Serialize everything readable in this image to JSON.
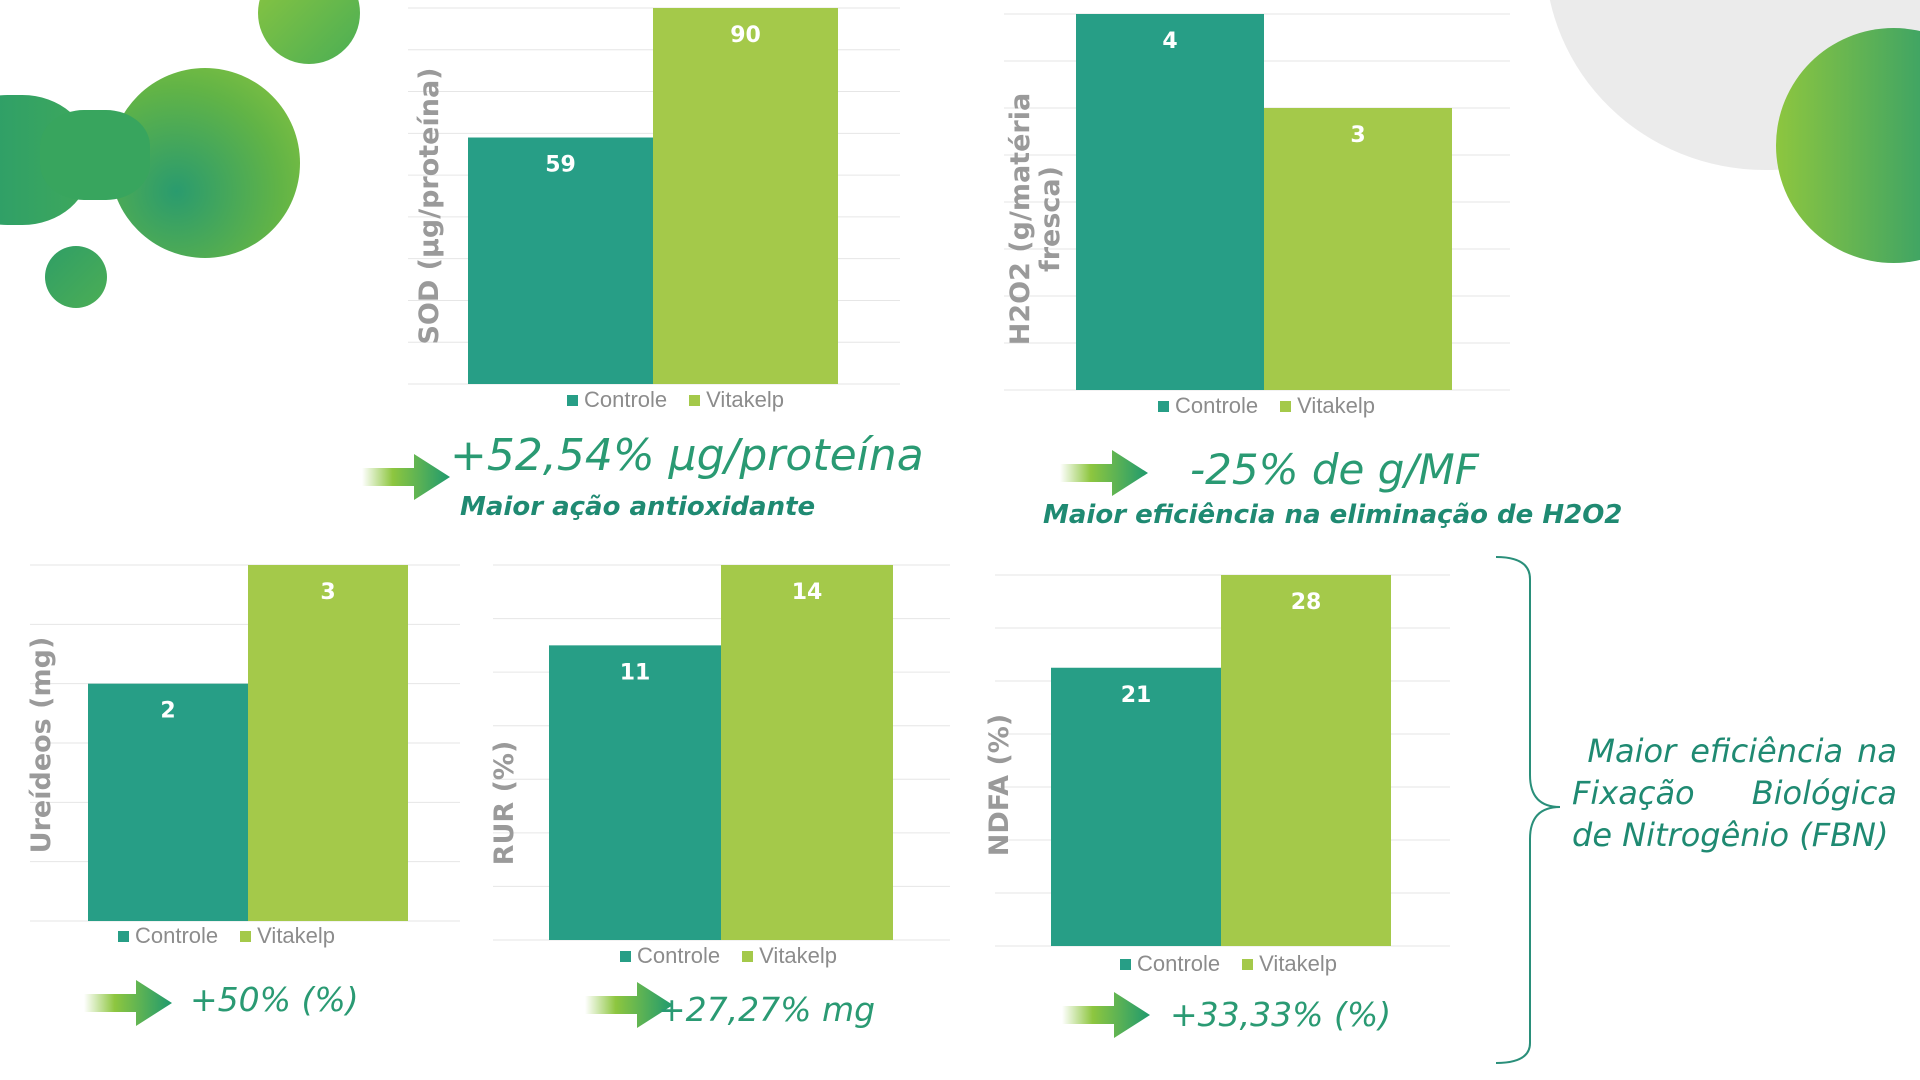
{
  "colors": {
    "controle": "#279e86",
    "vitakelp": "#a4c94a",
    "grid": "#e6e6e6",
    "label": "#9a9a9a",
    "accent_dark": "#1f8a72",
    "accent_light": "#8dc63f"
  },
  "chart_data": [
    {
      "type": "bar",
      "title": "",
      "categories": [
        "Controle",
        "Vitakelp"
      ],
      "values": [
        59,
        90
      ],
      "ylabel": "SOD (µg/proteína)",
      "ylim": [
        0,
        90
      ],
      "gridlines": 9,
      "legend": "bottom"
    },
    {
      "type": "bar",
      "title": "",
      "categories": [
        "Controle",
        "Vitakelp"
      ],
      "values": [
        4,
        3
      ],
      "ylabel": "H2O2 (g/matéria\nfresca)",
      "ylim": [
        0,
        4
      ],
      "gridlines": 8,
      "legend": "bottom"
    },
    {
      "type": "bar",
      "title": "",
      "categories": [
        "Controle",
        "Vitakelp"
      ],
      "values": [
        2,
        3
      ],
      "ylabel": "Ureídeos (mg)",
      "ylim": [
        0,
        3
      ],
      "gridlines": 6,
      "legend": "bottom"
    },
    {
      "type": "bar",
      "title": "",
      "categories": [
        "Controle",
        "Vitakelp"
      ],
      "values": [
        11,
        14
      ],
      "ylabel": "RUR (%)",
      "ylim": [
        0,
        14
      ],
      "gridlines": 7,
      "legend": "bottom"
    },
    {
      "type": "bar",
      "title": "",
      "categories": [
        "Controle",
        "Vitakelp"
      ],
      "values": [
        21,
        28
      ],
      "ylabel": "NDFA (%)",
      "ylim": [
        0,
        28
      ],
      "gridlines": 7,
      "legend": "bottom"
    }
  ],
  "highlights": {
    "sod": {
      "value": "+52,54% µg/proteína",
      "caption": "Maior ação antioxidante"
    },
    "h2o2": {
      "value": "-25% de g/MF",
      "caption": "Maior eficiência na eliminação de H2O2"
    },
    "ureides": {
      "value": "+50% (%)"
    },
    "rur": {
      "value": "+27,27% mg"
    },
    "ndfa": {
      "value": "+33,33% (%)"
    }
  },
  "fbn_note": {
    "line1_a": "Maior",
    "line1_b": "eficiência",
    "line1_c": "na",
    "line2_a": "Fixação",
    "line2_b": "Biológica",
    "line3": "de Nitrogênio (FBN)"
  }
}
